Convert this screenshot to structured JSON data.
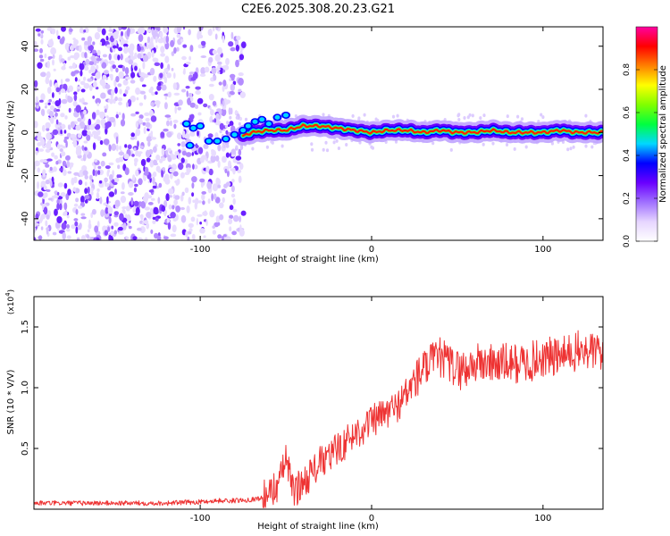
{
  "title": "C2E6.2025.308.20.23.G21",
  "chart_data": [
    {
      "type": "heatmap",
      "title": "C2E6.2025.308.20.23.G21",
      "xlabel": "Height of straight line (km)",
      "ylabel": "Frequency (Hz)",
      "xlim": [
        -197,
        135
      ],
      "ylim": [
        -50,
        49
      ],
      "xticks": [
        -100,
        0,
        100
      ],
      "xtick_labels": [
        "-100",
        "0",
        "100"
      ],
      "yticks": [
        -40,
        -20,
        0,
        20,
        40
      ],
      "ytick_labels": [
        "-40",
        "-20",
        "0",
        "20",
        "40"
      ],
      "ridge": {
        "x": [
          -110,
          -100,
          -90,
          -80,
          -70,
          -60,
          -50,
          -40,
          -30,
          -20,
          -10,
          0,
          10,
          20,
          30,
          40,
          50,
          60,
          70,
          80,
          90,
          100,
          110,
          120,
          135
        ],
        "y": [
          4,
          3,
          -4,
          -3,
          0,
          1,
          1,
          3,
          3,
          2,
          1,
          0,
          1,
          1,
          0,
          1,
          0,
          0,
          1,
          0,
          0,
          0,
          1,
          0,
          0
        ]
      },
      "colorbar": {
        "label": "Normalized spectral amplitude",
        "ticks": [
          0.0,
          0.2,
          0.4,
          0.6,
          0.8
        ],
        "tick_labels": [
          "0.0",
          "0.2",
          "0.4",
          "0.6",
          "0.8"
        ],
        "colors": [
          "#ffffff",
          "#e6d5ff",
          "#a070ff",
          "#6a00ff",
          "#0000ff",
          "#00d8ff",
          "#00ff40",
          "#80ff00",
          "#ffff00",
          "#ff8000",
          "#ff0000",
          "#ff00a0"
        ]
      }
    },
    {
      "type": "line",
      "xlabel": "Height of straight line (km)",
      "ylabel": "SNR (10 * V/V)",
      "y_multiplier": "(x10",
      "y_multiplier_exp": "4",
      "y_multiplier_close": ")",
      "xlim": [
        -197,
        135
      ],
      "ylim": [
        0,
        1.75
      ],
      "xticks": [
        -100,
        0,
        100
      ],
      "xtick_labels": [
        "-100",
        "0",
        "100"
      ],
      "yticks": [
        0.5,
        1.0,
        1.5
      ],
      "ytick_labels": [
        "0.5",
        "1.0",
        "1.5"
      ],
      "series": [
        {
          "name": "SNR",
          "color": "#ee3333",
          "x": [
            -197,
            -180,
            -160,
            -140,
            -120,
            -100,
            -90,
            -80,
            -70,
            -65,
            -60,
            -55,
            -52,
            -50,
            -47,
            -45,
            -40,
            -35,
            -30,
            -25,
            -20,
            -15,
            -10,
            -5,
            0,
            5,
            10,
            15,
            20,
            25,
            30,
            35,
            40,
            45,
            50,
            55,
            60,
            70,
            80,
            90,
            100,
            110,
            120,
            135
          ],
          "y": [
            0.05,
            0.05,
            0.05,
            0.05,
            0.05,
            0.06,
            0.07,
            0.07,
            0.08,
            0.09,
            0.12,
            0.2,
            0.3,
            0.45,
            0.2,
            0.15,
            0.22,
            0.3,
            0.38,
            0.42,
            0.5,
            0.55,
            0.62,
            0.67,
            0.72,
            0.76,
            0.8,
            0.85,
            0.95,
            1.05,
            1.15,
            1.2,
            1.25,
            1.2,
            1.15,
            1.15,
            1.2,
            1.2,
            1.2,
            1.2,
            1.25,
            1.25,
            1.3,
            1.3
          ]
        }
      ]
    }
  ]
}
